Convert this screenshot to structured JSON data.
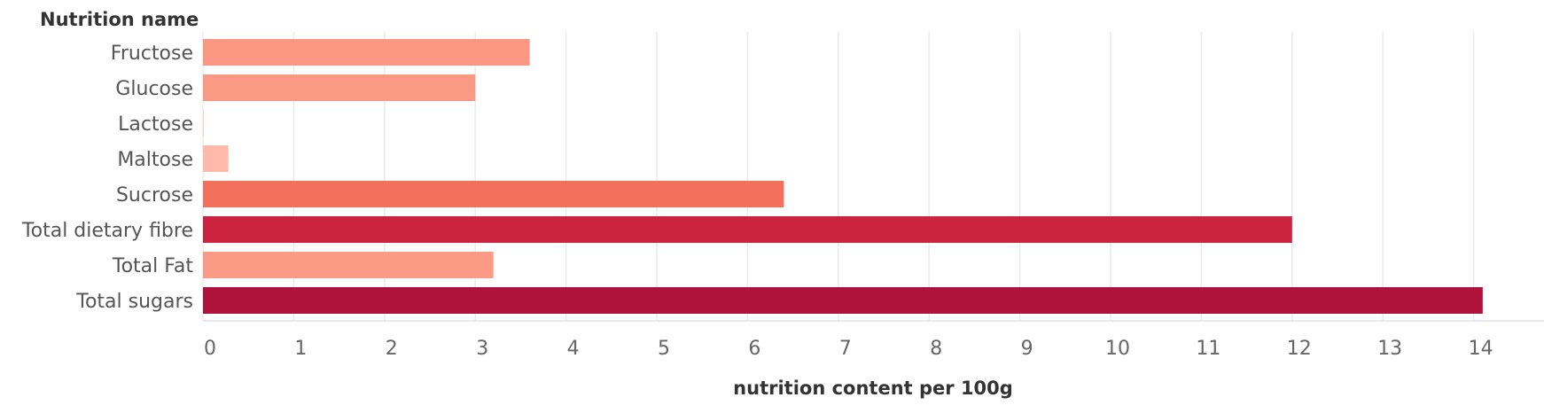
{
  "chart_data": {
    "type": "bar",
    "orientation": "horizontal",
    "row_header": "Nutrition name",
    "xlabel": "nutrition content per 100g",
    "xlim": [
      0,
      14.7
    ],
    "x_ticks": [
      "0",
      "1",
      "2",
      "3",
      "4",
      "5",
      "6",
      "7",
      "8",
      "9",
      "10",
      "11",
      "12",
      "13",
      "14"
    ],
    "grid": true,
    "categories": [
      "Fructose",
      "Glucose",
      "Lactose",
      "Maltose",
      "Sucrose",
      "Total dietary fibre",
      "Total Fat",
      "Total sugars"
    ],
    "values": [
      3.6,
      3.0,
      0.01,
      0.28,
      6.4,
      12.0,
      3.2,
      14.1
    ],
    "colors": [
      "#fb9782",
      "#fb9a84",
      "#fcd2c8",
      "#fdbaab",
      "#f2705c",
      "#cb2340",
      "#fb9b85",
      "#af133b"
    ]
  }
}
